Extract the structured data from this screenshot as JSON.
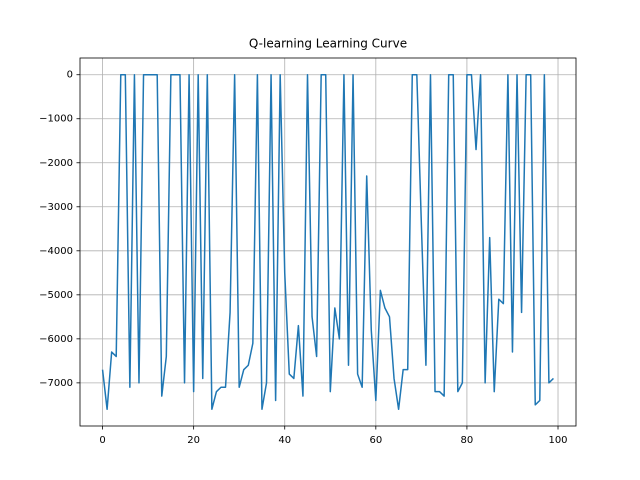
{
  "chart_data": {
    "type": "line",
    "title": "Q-learning Learning Curve",
    "x": [
      0,
      1,
      2,
      3,
      4,
      5,
      6,
      7,
      8,
      9,
      10,
      11,
      12,
      13,
      14,
      15,
      16,
      17,
      18,
      19,
      20,
      21,
      22,
      23,
      24,
      25,
      26,
      27,
      28,
      29,
      30,
      31,
      32,
      33,
      34,
      35,
      36,
      37,
      38,
      39,
      40,
      41,
      42,
      43,
      44,
      45,
      46,
      47,
      48,
      49,
      50,
      51,
      52,
      53,
      54,
      55,
      56,
      57,
      58,
      59,
      60,
      61,
      62,
      63,
      64,
      65,
      66,
      67,
      68,
      69,
      70,
      71,
      72,
      73,
      74,
      75,
      76,
      77,
      78,
      79,
      80,
      81,
      82,
      83,
      84,
      85,
      86,
      87,
      88,
      89,
      90,
      91,
      92,
      93,
      94,
      95,
      96,
      97,
      98,
      99
    ],
    "values": [
      -6700,
      -7600,
      -6300,
      -6400,
      0,
      0,
      -7100,
      0,
      -7000,
      0,
      0,
      0,
      0,
      -7300,
      -6400,
      0,
      0,
      0,
      -7000,
      0,
      -7200,
      0,
      -6900,
      0,
      -7600,
      -7200,
      -7100,
      -7100,
      -5400,
      0,
      -7100,
      -6700,
      -6600,
      -6100,
      0,
      -7600,
      -7000,
      0,
      -7400,
      0,
      -4500,
      -6800,
      -6900,
      -5700,
      -7300,
      0,
      -5500,
      -6400,
      0,
      0,
      -7200,
      -5300,
      -6000,
      0,
      -6600,
      0,
      -6800,
      -7100,
      -2300,
      -5800,
      -7400,
      -4900,
      -5300,
      -5500,
      -6900,
      -7600,
      -6700,
      -6700,
      0,
      0,
      -3400,
      -6600,
      0,
      -7200,
      -7200,
      -7300,
      0,
      0,
      -7200,
      -7000,
      0,
      0,
      -1700,
      0,
      -7000,
      -3700,
      -7200,
      -5100,
      -5200,
      0,
      -6300,
      0,
      -5400,
      0,
      0,
      -7500,
      -7400,
      0,
      -7000,
      -6900
    ],
    "color": "#1f77b4",
    "xlim": [
      -4.95,
      103.95
    ],
    "xticks": [
      0,
      20,
      40,
      60,
      80,
      100
    ],
    "ylim": [
      -7980,
      380
    ],
    "yticks": [
      {
        "value": 0,
        "label": "0"
      },
      {
        "value": -1000,
        "label": "−1000"
      },
      {
        "value": -2000,
        "label": "−2000"
      },
      {
        "value": -3000,
        "label": "−3000"
      },
      {
        "value": -4000,
        "label": "−4000"
      },
      {
        "value": -5000,
        "label": "−5000"
      },
      {
        "value": -6000,
        "label": "−6000"
      },
      {
        "value": -7000,
        "label": "−7000"
      }
    ],
    "grid": true
  }
}
